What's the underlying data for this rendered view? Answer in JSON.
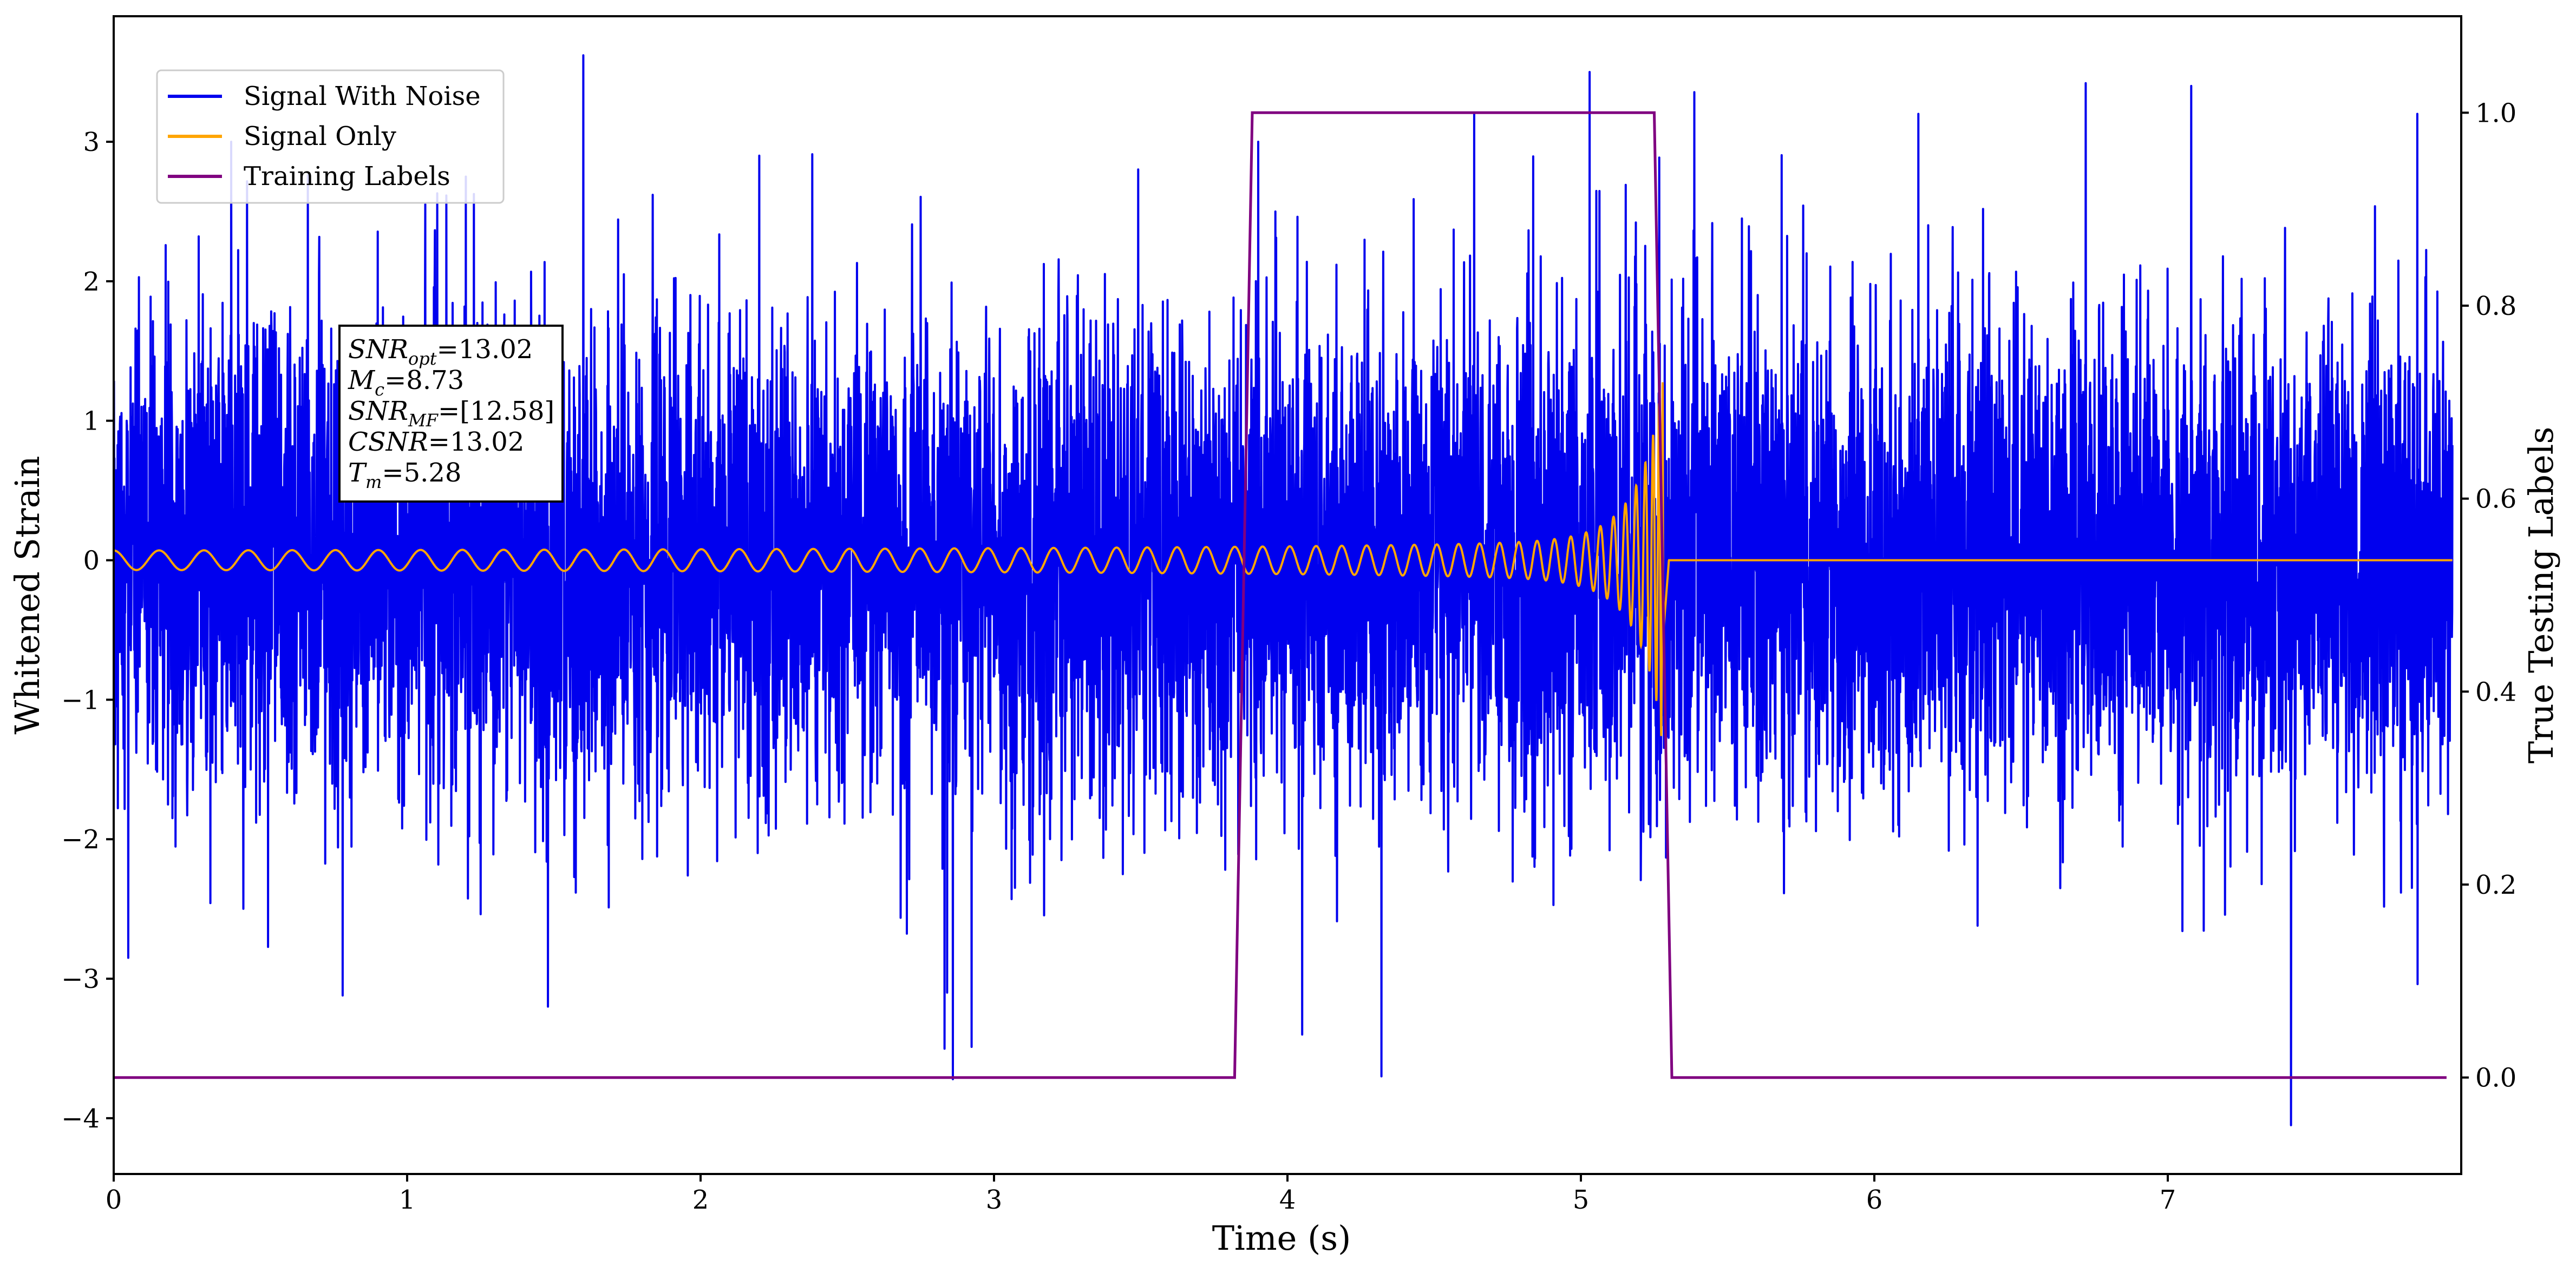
{
  "colors": {
    "signal_with_noise": "#0000ee",
    "signal_only": "#ffa500",
    "training_labels": "#800080",
    "background": "#ffffff",
    "axes": "#000000"
  },
  "chart_data": {
    "type": "line",
    "title": "",
    "xlabel": "Time (s)",
    "ylabel_left": "Whitened Strain",
    "ylabel_right": "True Testing Labels",
    "xlim": [
      0,
      8.0
    ],
    "ylim_left": [
      -4.4,
      3.9
    ],
    "ylim_right": [
      -0.1,
      1.1
    ],
    "x_ticks": [
      0,
      1,
      2,
      3,
      4,
      5,
      6,
      7
    ],
    "x_tick_labels": [
      "0",
      "1",
      "2",
      "3",
      "4",
      "5",
      "6",
      "7"
    ],
    "y_left_ticks": [
      -4,
      -3,
      -2,
      -1,
      0,
      1,
      2,
      3
    ],
    "y_left_tick_labels": [
      "−4",
      "−3",
      "−2",
      "−1",
      "0",
      "1",
      "2",
      "3"
    ],
    "y_right_ticks": [
      0.0,
      0.2,
      0.4,
      0.6,
      0.8,
      1.0
    ],
    "y_right_tick_labels": [
      "0.0",
      "0.2",
      "0.4",
      "0.6",
      "0.8",
      "1.0"
    ],
    "grid": false,
    "legend": {
      "location": "upper-left",
      "entries": [
        {
          "label": "Signal With Noise",
          "color": "#0000ee"
        },
        {
          "label": "Signal Only",
          "color": "#ffa500"
        },
        {
          "label": "Training Labels",
          "color": "#800080"
        }
      ]
    },
    "series": [
      {
        "name": "Signal With Noise",
        "axis": "left",
        "color": "#0000ee",
        "description_values": {
          "x_range": [
            0,
            8.0
          ],
          "typical_range": [
            -1.5,
            1.5
          ],
          "max": 3.62,
          "min": -4.05
        },
        "spikes": [
          {
            "x": 0.05,
            "y": -2.85
          },
          {
            "x": 0.4,
            "y": 3.0
          },
          {
            "x": 0.78,
            "y": -3.12
          },
          {
            "x": 1.2,
            "y": 2.75
          },
          {
            "x": 1.48,
            "y": -3.2
          },
          {
            "x": 1.6,
            "y": 3.62
          },
          {
            "x": 2.2,
            "y": 2.9
          },
          {
            "x": 2.84,
            "y": -3.1
          },
          {
            "x": 2.86,
            "y": -3.72
          },
          {
            "x": 3.9,
            "y": 3.0
          },
          {
            "x": 4.05,
            "y": -3.4
          },
          {
            "x": 4.32,
            "y": -3.7
          },
          {
            "x": 5.03,
            "y": 3.5
          },
          {
            "x": 6.15,
            "y": 3.2
          },
          {
            "x": 6.72,
            "y": 3.42
          },
          {
            "x": 7.08,
            "y": 3.4
          },
          {
            "x": 7.42,
            "y": -4.05
          },
          {
            "x": 7.85,
            "y": 3.2
          }
        ]
      },
      {
        "name": "Signal Only",
        "axis": "left",
        "color": "#ffa500",
        "model": "chirp",
        "merger_time": 5.28,
        "amplitude_start": 0.07,
        "amplitude_at_merger": 1.3,
        "post_merger_value": 0.0
      },
      {
        "name": "Training Labels",
        "axis": "right",
        "color": "#800080",
        "x": [
          0.0,
          3.82,
          3.88,
          5.25,
          5.31,
          7.95
        ],
        "y": [
          0.0,
          0.0,
          1.0,
          1.0,
          0.0,
          0.0
        ]
      }
    ],
    "annotation": {
      "lines": [
        {
          "name": "SNR",
          "sub": "opt",
          "value": "=13.02"
        },
        {
          "name": "M",
          "sub": "c",
          "value": "=8.73"
        },
        {
          "name": "SNR",
          "sub": "MF",
          "value": "=[12.58]"
        },
        {
          "name": "CSNR",
          "sub": "",
          "value": "=13.02"
        },
        {
          "name": "T",
          "sub": "m",
          "value": "=5.28"
        }
      ]
    }
  }
}
